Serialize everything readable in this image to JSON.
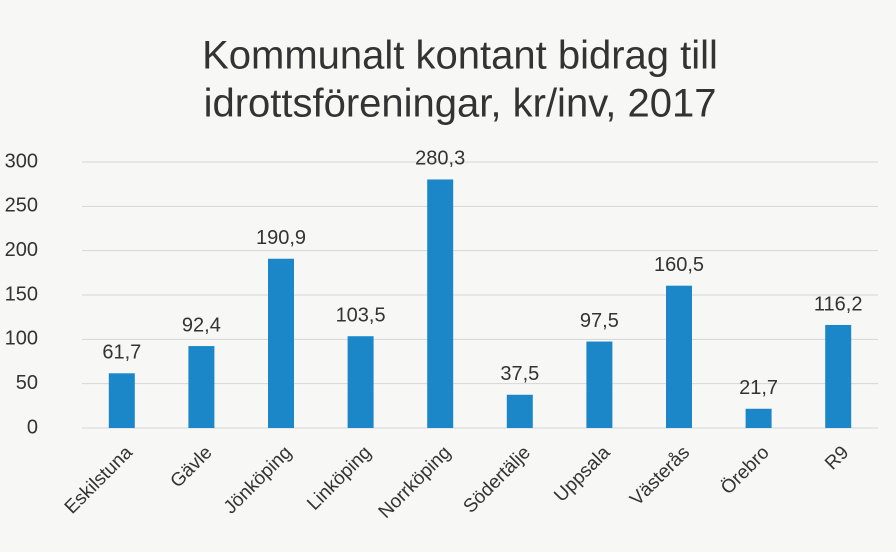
{
  "chart_data": {
    "type": "bar",
    "title": [
      "Kommunalt kontant bidrag till",
      "idrottsföreningar, kr/inv, 2017"
    ],
    "categories": [
      "Eskilstuna",
      "Gävle",
      "Jönköping",
      "Linköping",
      "Norrköping",
      "Södertälje",
      "Uppsala",
      "Västerås",
      "Örebro",
      "R9"
    ],
    "values": [
      61.7,
      92.4,
      190.9,
      103.5,
      280.3,
      37.5,
      97.5,
      160.5,
      21.7,
      116.2
    ],
    "value_labels": [
      "61,7",
      "92,4",
      "190,9",
      "103,5",
      "280,3",
      "37,5",
      "97,5",
      "160,5",
      "21,7",
      "116,2"
    ],
    "color": "#1b87c9",
    "ylim": [
      0,
      300
    ],
    "yticks": [
      0,
      50,
      100,
      150,
      200,
      250,
      300
    ],
    "grid": true
  }
}
